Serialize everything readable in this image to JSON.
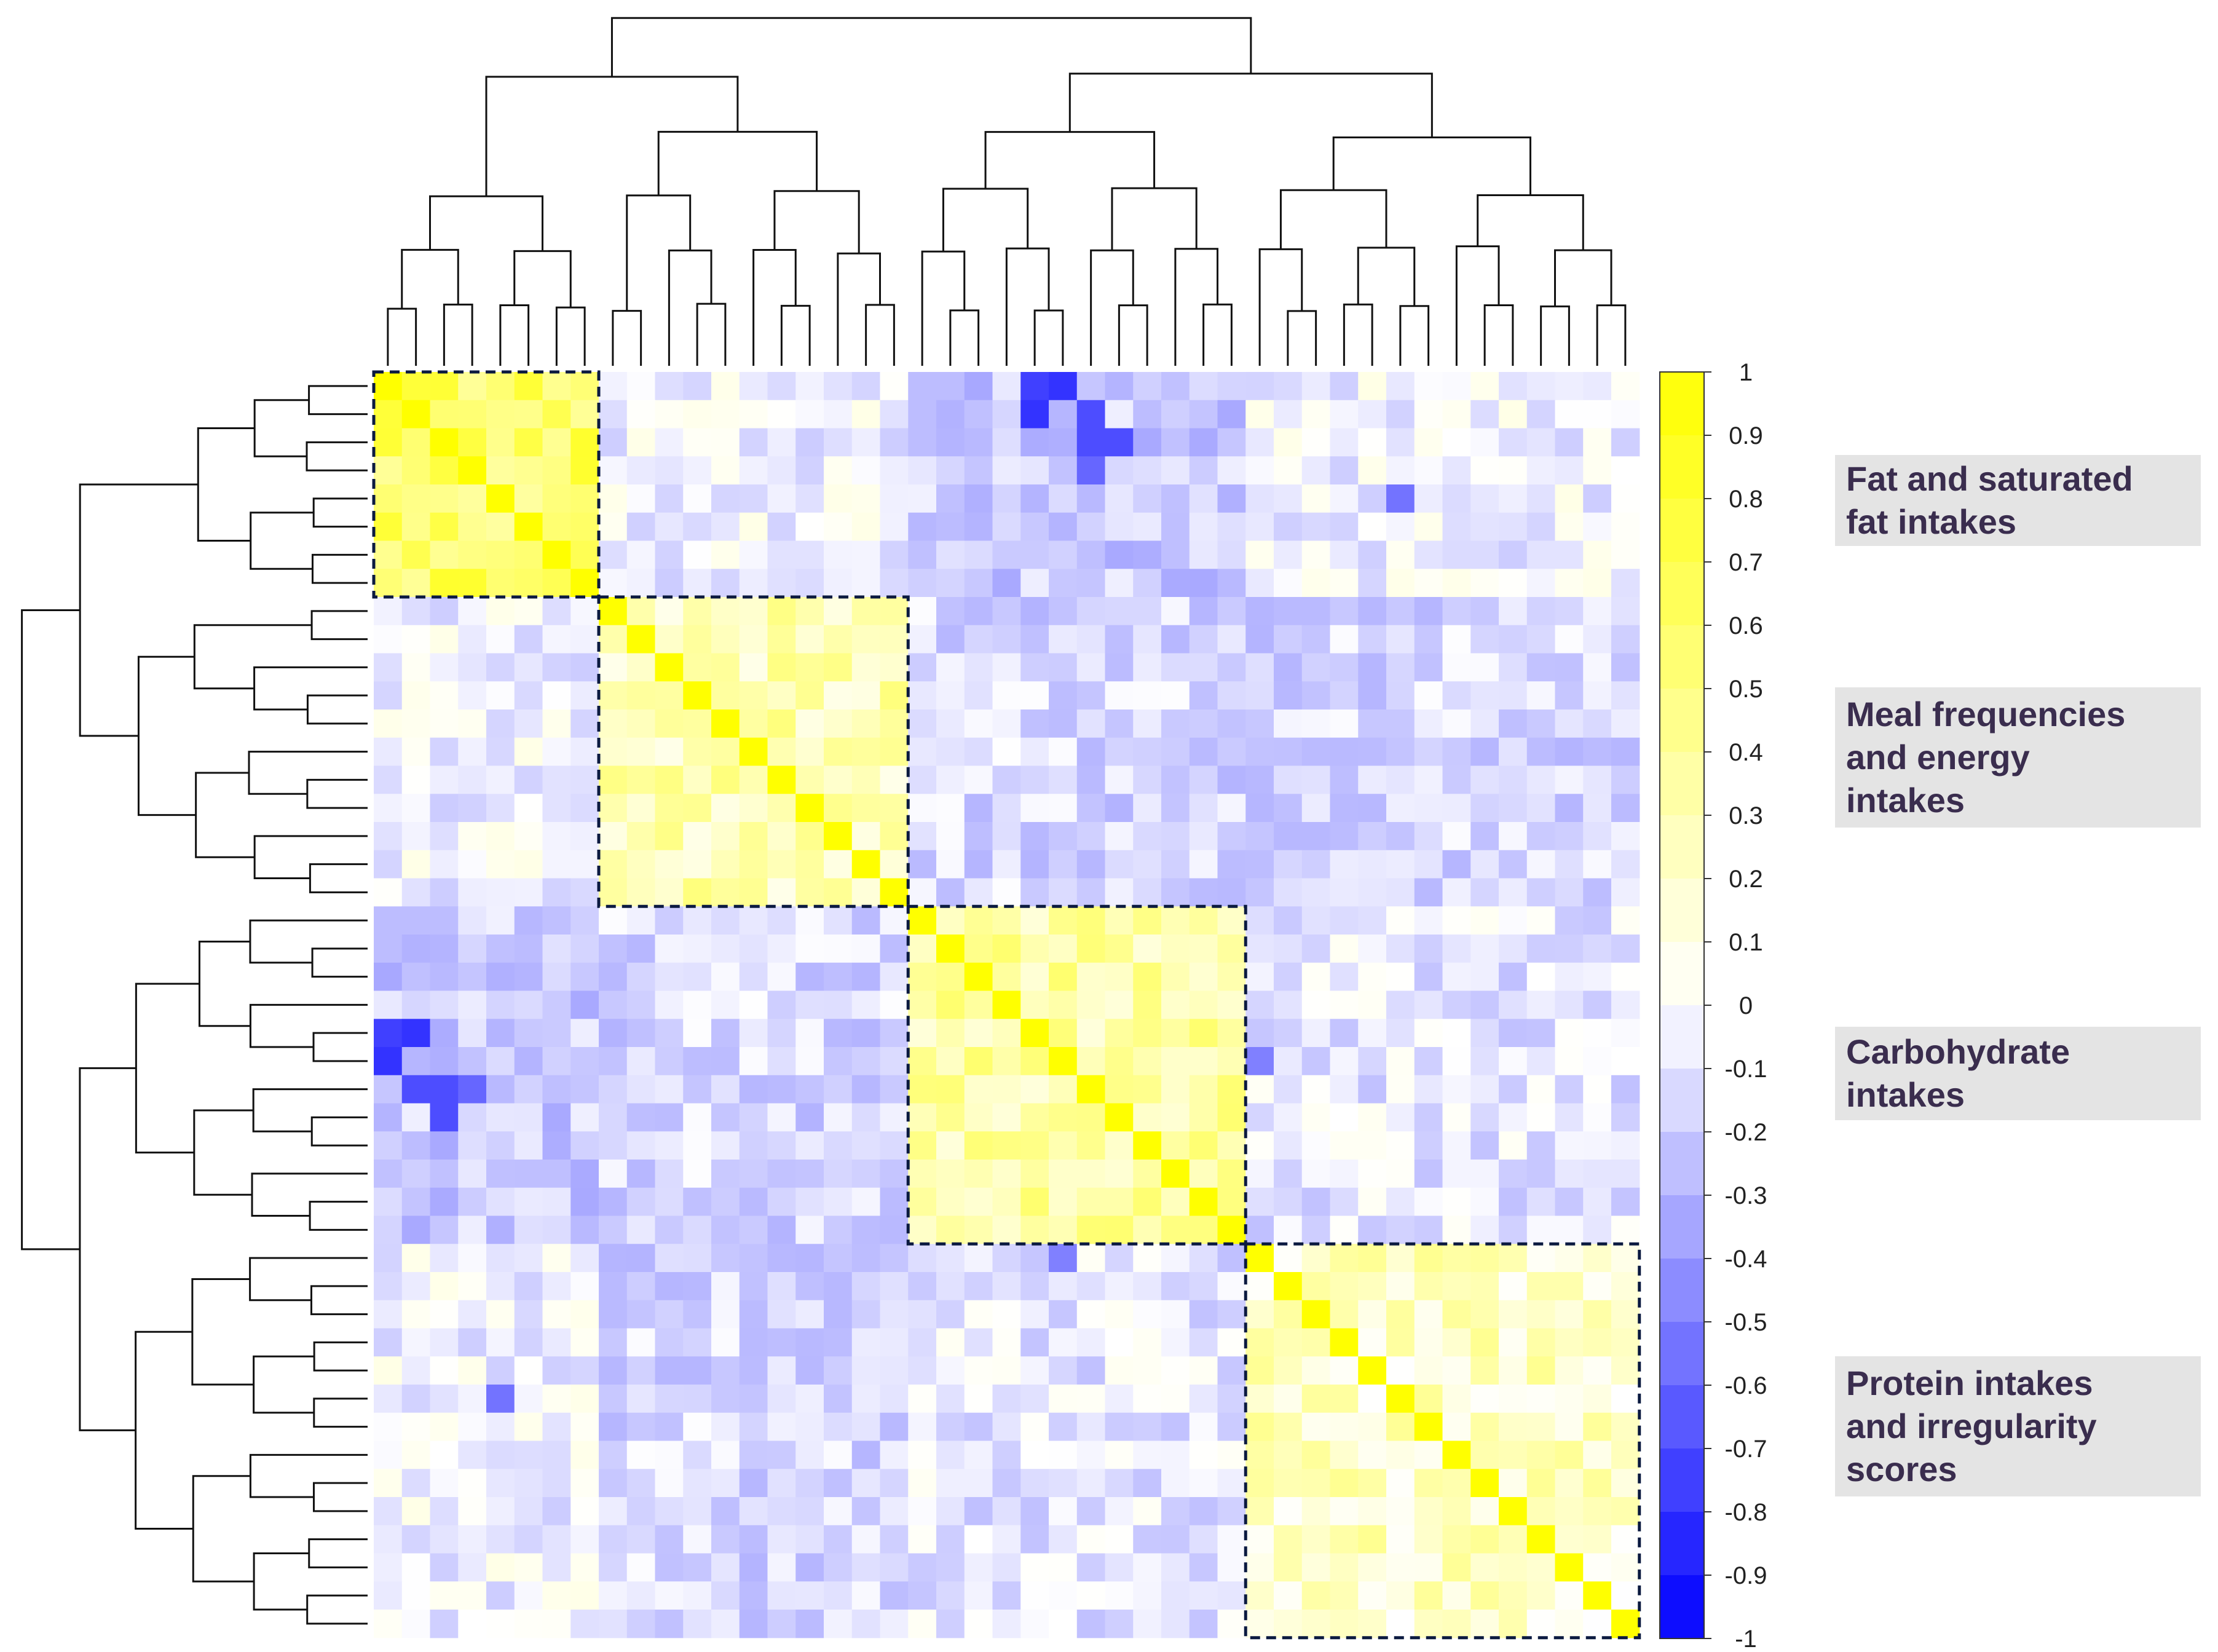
{
  "chart_data": {
    "type": "heatmap",
    "title": "",
    "xlabel": "",
    "ylabel": "",
    "variable_count": 45,
    "colorbar": {
      "min": -1,
      "max": 1,
      "tick_labels": [
        "1",
        "0.9",
        "0.8",
        "0.7",
        "0.6",
        "0.5",
        "0.4",
        "0.3",
        "0.2",
        "0.1",
        "0",
        "-0.1",
        "-0.2",
        "-0.3",
        "-0.4",
        "-0.5",
        "-0.6",
        "-0.7",
        "-0.8",
        "-0.9",
        "-1"
      ],
      "colors": {
        "negative": "#0000ff",
        "zero": "#ffffff",
        "positive": "#ffff00"
      }
    },
    "clusters": [
      {
        "label": "Fat and saturated fat intakes",
        "lines": [
          "Fat and saturated",
          "fat intakes"
        ],
        "start": 0,
        "end": 8,
        "block_mean": 0.6
      },
      {
        "label": "Meal frequencies and energy intakes",
        "lines": [
          "Meal frequencies",
          "and energy",
          "intakes"
        ],
        "start": 8,
        "end": 19,
        "block_mean": 0.3
      },
      {
        "label": "Carbohydrate intakes",
        "lines": [
          "Carbohydrate",
          "intakes"
        ],
        "start": 19,
        "end": 31,
        "block_mean": 0.35
      },
      {
        "label": "Protein intakes and irregularity scores",
        "lines": [
          "Protein intakes",
          "and irregularity",
          "scores"
        ],
        "start": 31,
        "end": 45,
        "block_mean": 0.22
      }
    ],
    "between_cluster_means": [
      [
        null,
        -0.05,
        -0.2,
        -0.05
      ],
      [
        -0.05,
        null,
        -0.15,
        -0.15
      ],
      [
        -0.2,
        -0.15,
        null,
        -0.1
      ],
      [
        -0.05,
        -0.15,
        -0.1,
        null
      ]
    ],
    "notable_cells": [
      {
        "row": 0,
        "col": 23,
        "value": -0.75
      },
      {
        "row": 1,
        "col": 23,
        "value": -0.8
      },
      {
        "row": 2,
        "col": 25,
        "value": -0.7
      },
      {
        "row": 3,
        "col": 25,
        "value": -0.6
      },
      {
        "row": 4,
        "col": 36,
        "value": -0.55
      },
      {
        "row": 24,
        "col": 0,
        "value": -0.8
      },
      {
        "row": 25,
        "col": 1,
        "value": -0.7
      },
      {
        "row": 26,
        "col": 2,
        "value": -0.7
      },
      {
        "row": 31,
        "col": 24,
        "value": -0.5
      },
      {
        "row": 36,
        "col": 4,
        "value": -0.55
      }
    ]
  }
}
